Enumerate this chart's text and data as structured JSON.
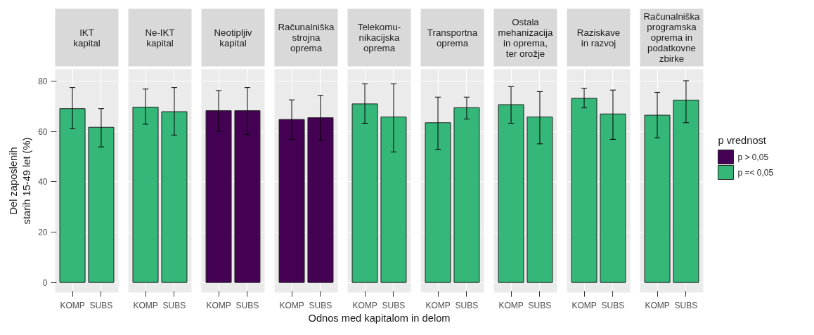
{
  "chart_data": [
    {
      "type": "bar",
      "title": "IKT\nkapital",
      "ylabel": "Del zaposlenih\nstarih 15-49 let (%)",
      "categories": [
        "KOMP",
        "SUBS"
      ],
      "values": [
        69.1,
        61.7
      ],
      "errors": [
        [
          61.1,
          77.5
        ],
        [
          53.9,
          69.1
        ]
      ],
      "colors": [
        "#35b779",
        "#35b779"
      ],
      "ylim": [
        -4,
        84.8
      ],
      "yticks": [
        0,
        20,
        40,
        60,
        80
      ],
      "grid": true
    },
    {
      "type": "bar",
      "title": "Ne-IKT\nkapital",
      "categories": [
        "KOMP",
        "SUBS"
      ],
      "values": [
        69.7,
        67.9
      ],
      "errors": [
        [
          62.9,
          76.9
        ],
        [
          58.6,
          77.5
        ]
      ],
      "colors": [
        "#35b779",
        "#35b779"
      ],
      "ylim": [
        -4,
        84.8
      ],
      "yticks": [
        0,
        20,
        40,
        60,
        80
      ],
      "grid": true,
      "tick_labels": "x"
    },
    {
      "type": "bar",
      "title": "Neotipljiv\nkapital",
      "categories": [
        "KOMP",
        "SUBS"
      ],
      "values": [
        68.3,
        68.3
      ],
      "errors": [
        [
          60.1,
          76.3
        ],
        [
          58.8,
          77.5
        ]
      ],
      "colors": [
        "#440154",
        "#440154"
      ],
      "ylim": [
        -4,
        84.8
      ],
      "yticks": [
        0,
        20,
        40,
        60,
        80
      ],
      "grid": true,
      "tick_labels": "x"
    },
    {
      "type": "bar",
      "title": "Računalniška\nstrojna\noprema",
      "categories": [
        "KOMP",
        "SUBS"
      ],
      "values": [
        64.8,
        65.5
      ],
      "errors": [
        [
          56.9,
          72.6
        ],
        [
          56.4,
          74.4
        ]
      ],
      "colors": [
        "#440154",
        "#440154"
      ],
      "ylim": [
        -4,
        84.8
      ],
      "yticks": [
        0,
        20,
        40,
        60,
        80
      ],
      "grid": true,
      "tick_labels": "x"
    },
    {
      "type": "bar",
      "title": "Telekomu-\nnikacijska\noprema",
      "xlabel": "Odnos med kapitalom in delom",
      "categories": [
        "KOMP",
        "SUBS"
      ],
      "values": [
        71.0,
        65.8
      ],
      "errors": [
        [
          63.3,
          79.0
        ],
        [
          51.9,
          79.0
        ]
      ],
      "colors": [
        "#35b779",
        "#35b779"
      ],
      "ylim": [
        -4,
        84.8
      ],
      "yticks": [
        0,
        20,
        40,
        60,
        80
      ],
      "grid": true,
      "tick_labels": "x"
    },
    {
      "type": "bar",
      "title": "Transportna\noprema",
      "categories": [
        "KOMP",
        "SUBS"
      ],
      "values": [
        63.5,
        69.5
      ],
      "errors": [
        [
          52.9,
          73.7
        ],
        [
          65.0,
          73.7
        ]
      ],
      "colors": [
        "#35b779",
        "#35b779"
      ],
      "ylim": [
        -4,
        84.8
      ],
      "yticks": [
        0,
        20,
        40,
        60,
        80
      ],
      "grid": true,
      "tick_labels": "x"
    },
    {
      "type": "bar",
      "title": "Ostala\nmehanizacija\nin oprema,\nter orožje",
      "categories": [
        "KOMP",
        "SUBS"
      ],
      "values": [
        70.7,
        65.8
      ],
      "errors": [
        [
          63.3,
          77.9
        ],
        [
          55.1,
          75.9
        ]
      ],
      "colors": [
        "#35b779",
        "#35b779"
      ],
      "ylim": [
        -4,
        84.8
      ],
      "yticks": [
        0,
        20,
        40,
        60,
        80
      ],
      "grid": true,
      "tick_labels": "x"
    },
    {
      "type": "bar",
      "title": "Raziskave\nin razvoj",
      "categories": [
        "KOMP",
        "SUBS"
      ],
      "values": [
        73.2,
        67.0
      ],
      "errors": [
        [
          69.4,
          77.2
        ],
        [
          56.9,
          76.5
        ]
      ],
      "colors": [
        "#35b779",
        "#35b779"
      ],
      "ylim": [
        -4,
        84.8
      ],
      "yticks": [
        0,
        20,
        40,
        60,
        80
      ],
      "grid": true,
      "tick_labels": "x"
    },
    {
      "type": "bar",
      "title": "Računalniška\nprogramska\noprema in\npodatkovne\nzbirke",
      "legend_title": "p vrednost",
      "legend": "right",
      "categories": [
        "KOMP",
        "SUBS"
      ],
      "series": [
        {
          "name": "p > 0,05",
          "color": "#440154",
          "values": [
            null,
            null
          ],
          "errors": [
            null,
            null
          ]
        },
        {
          "name": "p =< 0,05",
          "color": "#35b779",
          "values": [
            66.5,
            72.5
          ],
          "errors": [
            [
              57.5,
              75.6
            ],
            [
              63.5,
              80.2
            ]
          ]
        }
      ],
      "ylim": [
        -4,
        84.8
      ],
      "yticks": [
        0,
        20,
        40,
        60,
        80
      ],
      "grid": true,
      "tick_labels": "x"
    }
  ]
}
